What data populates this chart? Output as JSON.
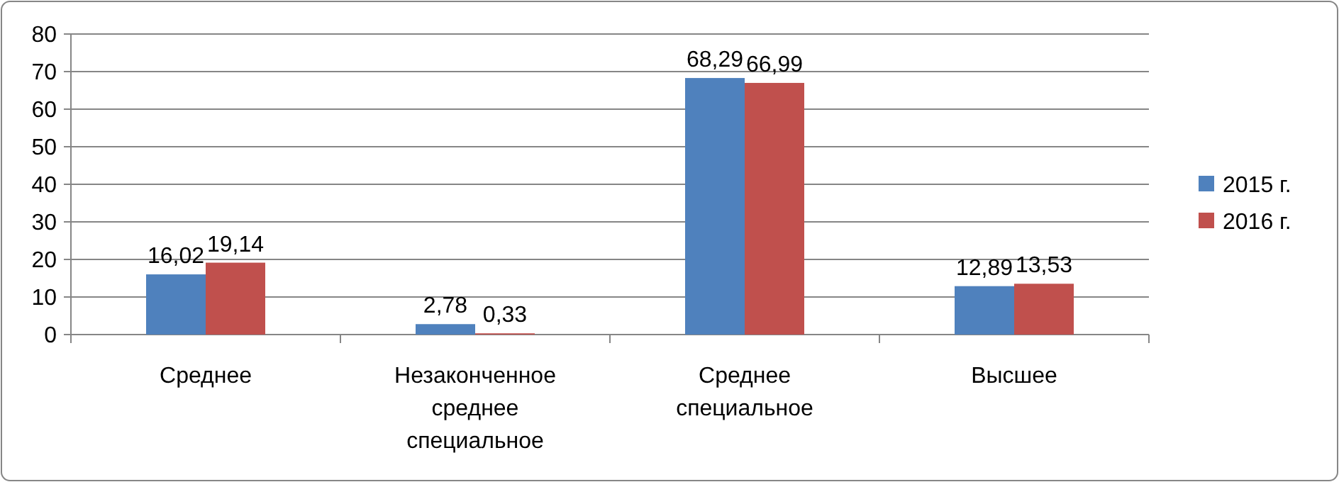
{
  "chart_data": {
    "type": "bar",
    "categories": [
      "Среднее",
      "Незаконченное среднее специальное",
      "Среднее специальное",
      "Высшее"
    ],
    "series": [
      {
        "name": "2015 г.",
        "color": "#4f81bd",
        "values": [
          16.02,
          2.78,
          68.29,
          12.89
        ],
        "value_labels": [
          "16,02",
          "2,78",
          "68,29",
          "12,89"
        ]
      },
      {
        "name": "2016 г.",
        "color": "#c0504d",
        "values": [
          19.14,
          0.33,
          66.99,
          13.53
        ],
        "value_labels": [
          "19,14",
          "0,33",
          "66,99",
          "13,53"
        ]
      }
    ],
    "ylim": [
      0,
      80
    ],
    "yticks": [
      0,
      10,
      20,
      30,
      40,
      50,
      60,
      70,
      80
    ],
    "grid": "y",
    "legend": "right"
  }
}
